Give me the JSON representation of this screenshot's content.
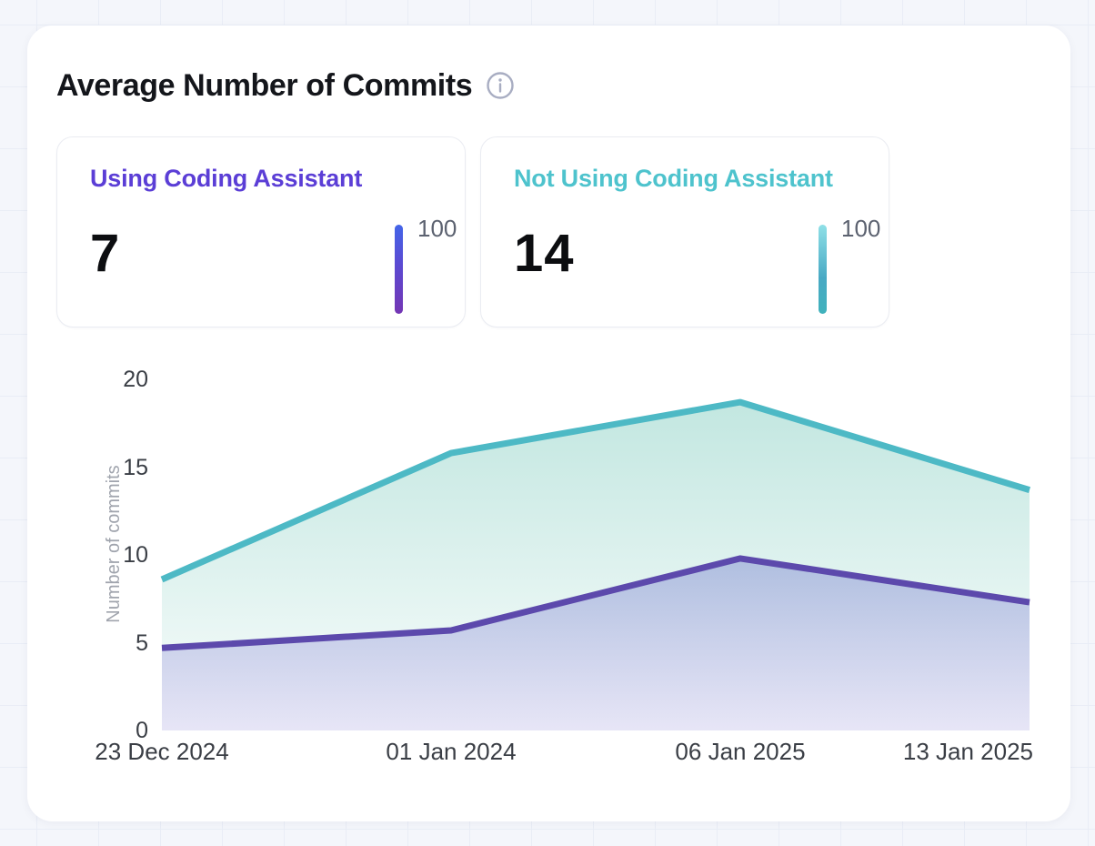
{
  "panel": {
    "title": "Average Number of Commits"
  },
  "stats": [
    {
      "label": "Using Coding Assistant",
      "value": "7",
      "scale_max": "100",
      "label_color": "#5b3ed6",
      "bar_gradient": [
        "#4365e8",
        "#7436b4"
      ]
    },
    {
      "label": "Not Using Coding Assistant",
      "value": "14",
      "scale_max": "100",
      "label_color": "#4ec3cd",
      "bar_gradient": [
        "#8fe0e7",
        "#40b2bc"
      ]
    }
  ],
  "chart_data": {
    "type": "area",
    "title": "Average Number of Commits",
    "categories": [
      "23 Dec 2024",
      "01 Jan 2024",
      "06 Jan 2025",
      "13 Jan 2025"
    ],
    "series": [
      {
        "name": "Not Using Coding Assistant",
        "color": "#4db9c5",
        "values": [
          8.6,
          15.8,
          18.7,
          13.7
        ]
      },
      {
        "name": "Using Coding Assistant",
        "color": "#5c49ac",
        "values": [
          4.7,
          5.7,
          9.8,
          7.3
        ]
      }
    ],
    "xlabel": "",
    "ylabel": "Number of commits",
    "yticks": [
      0,
      5,
      10,
      15,
      20
    ],
    "ylim": [
      0,
      20
    ],
    "grid": false,
    "legend_position": "none"
  }
}
